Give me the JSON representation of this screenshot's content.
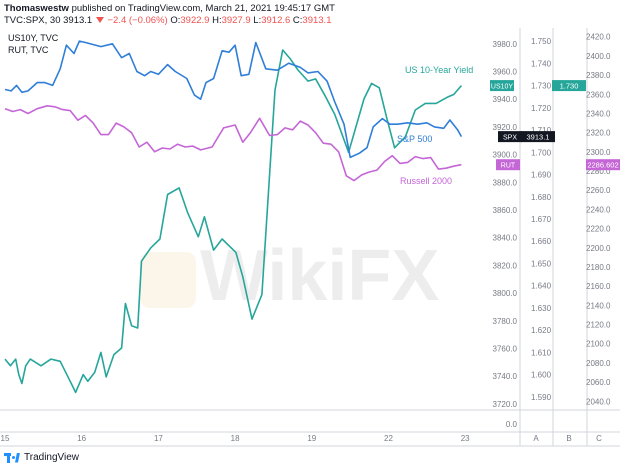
{
  "header": {
    "author": "Thomaswestw",
    "published_text": "published on TradingView.com, March 21, 2021 19:45:17 GMT",
    "symbol": "TVC:SPX, 30",
    "last": "3913.1",
    "change": "−2.4 (−0.06%)",
    "o_label": "O:",
    "o_value": "3922.9",
    "h_label": "H:",
    "h_value": "3927.9",
    "l_label": "L:",
    "l_value": "3912.6",
    "c_label": "C:",
    "c_value": "3913.1"
  },
  "overlay_legend": [
    "US10Y, TVC",
    "RUT, TVC"
  ],
  "footer": {
    "brand": "TradingView"
  },
  "watermark": "WikiFX",
  "colors": {
    "us10y": "#26a69a",
    "spx": "#2f7ed8",
    "rut": "#c466d6",
    "grid": "#f0f3fa",
    "axis_text": "#787b86"
  },
  "chart_data": {
    "type": "line",
    "x_ticks": [
      "15",
      "16",
      "17",
      "18",
      "19",
      "22",
      "23"
    ],
    "axis_spx": {
      "ticks": [
        3980.0,
        3960.0,
        3940.0,
        3920.0,
        3900.0,
        3880.0,
        3860.0,
        3840.0,
        3820.0,
        3800.0,
        3780.0,
        3760.0,
        3740.0,
        3720.0
      ],
      "range": [
        3717,
        3990
      ]
    },
    "axis_yield": {
      "ticks": [
        1.75,
        1.74,
        1.73,
        1.72,
        1.71,
        1.7,
        1.69,
        1.68,
        1.67,
        1.66,
        1.65,
        1.64,
        1.63,
        1.62,
        1.61,
        1.6,
        1.59
      ],
      "range": [
        1.585,
        1.755
      ]
    },
    "axis_rut": {
      "ticks": [
        2420.0,
        2400.0,
        2380.0,
        2360.0,
        2340.0,
        2320.0,
        2300.0,
        2280.0,
        2260.0,
        2240.0,
        2220.0,
        2200.0,
        2180.0,
        2160.0,
        2140.0,
        2120.0,
        2100.0,
        2080.0,
        2060.0,
        2040.0
      ],
      "range": [
        2033,
        2427
      ]
    },
    "bottom_pane": {
      "tick": "0.0"
    },
    "pane_letters": [
      "A",
      "B",
      "C"
    ],
    "series": [
      {
        "name": "US 10-Year Yield",
        "short": "US10Y",
        "axis": "yield",
        "last_label": "1.730",
        "color_key": "us10y",
        "points": [
          [
            0,
            1.607
          ],
          [
            0.07,
            1.604
          ],
          [
            0.14,
            1.607
          ],
          [
            0.18,
            1.6
          ],
          [
            0.22,
            1.596
          ],
          [
            0.27,
            1.604
          ],
          [
            0.33,
            1.607
          ],
          [
            0.47,
            1.604
          ],
          [
            0.6,
            1.607
          ],
          [
            0.72,
            1.606
          ],
          [
            0.85,
            1.597
          ],
          [
            0.92,
            1.592
          ],
          [
            1.02,
            1.6
          ],
          [
            1.08,
            1.597
          ],
          [
            1.17,
            1.601
          ],
          [
            1.25,
            1.61
          ],
          [
            1.32,
            1.599
          ],
          [
            1.42,
            1.609
          ],
          [
            1.52,
            1.612
          ],
          [
            1.57,
            1.632
          ],
          [
            1.65,
            1.622
          ],
          [
            1.73,
            1.621
          ],
          [
            1.78,
            1.651
          ],
          [
            1.9,
            1.657
          ],
          [
            2.02,
            1.661
          ],
          [
            2.12,
            1.681
          ],
          [
            2.27,
            1.684
          ],
          [
            2.38,
            1.673
          ],
          [
            2.52,
            1.662
          ],
          [
            2.6,
            1.671
          ],
          [
            2.72,
            1.656
          ],
          [
            2.83,
            1.661
          ],
          [
            3.01,
            1.655
          ],
          [
            3.1,
            1.644
          ],
          [
            3.22,
            1.625
          ],
          [
            3.35,
            1.636
          ],
          [
            3.52,
            1.728
          ],
          [
            3.62,
            1.746
          ],
          [
            3.72,
            1.742
          ],
          [
            3.82,
            1.737
          ],
          [
            3.95,
            1.732
          ],
          [
            4.05,
            1.733
          ],
          [
            4.18,
            1.725
          ],
          [
            4.3,
            1.717
          ],
          [
            4.48,
            1.7
          ],
          [
            4.58,
            1.712
          ],
          [
            4.68,
            1.724
          ],
          [
            4.78,
            1.731
          ],
          [
            4.88,
            1.729
          ],
          [
            4.98,
            1.715
          ],
          [
            5.08,
            1.702
          ],
          [
            5.22,
            1.707
          ],
          [
            5.35,
            1.719
          ],
          [
            5.48,
            1.722
          ],
          [
            5.62,
            1.722
          ],
          [
            5.78,
            1.725
          ],
          [
            5.85,
            1.726
          ],
          [
            5.95,
            1.73
          ]
        ]
      },
      {
        "name": "S&P 500",
        "short": "SPX",
        "axis": "spx",
        "last_label": "3913.1",
        "color_key": "spx",
        "points": [
          [
            0,
            3947
          ],
          [
            0.08,
            3946
          ],
          [
            0.15,
            3950
          ],
          [
            0.22,
            3945
          ],
          [
            0.3,
            3946
          ],
          [
            0.42,
            3952
          ],
          [
            0.52,
            3952
          ],
          [
            0.62,
            3950
          ],
          [
            0.72,
            3962
          ],
          [
            0.8,
            3979
          ],
          [
            0.9,
            3973
          ],
          [
            0.97,
            3982
          ],
          [
            1.05,
            3981
          ],
          [
            1.25,
            3978
          ],
          [
            1.4,
            3980
          ],
          [
            1.52,
            3970
          ],
          [
            1.62,
            3973
          ],
          [
            1.72,
            3960
          ],
          [
            1.82,
            3957
          ],
          [
            1.9,
            3960
          ],
          [
            2.0,
            3958
          ],
          [
            2.12,
            3965
          ],
          [
            2.22,
            3960
          ],
          [
            2.37,
            3955
          ],
          [
            2.47,
            3943
          ],
          [
            2.55,
            3940
          ],
          [
            2.62,
            3952
          ],
          [
            2.72,
            3955
          ],
          [
            2.83,
            3975
          ],
          [
            2.92,
            3974
          ],
          [
            3.0,
            3979
          ],
          [
            3.08,
            3957
          ],
          [
            3.18,
            3958
          ],
          [
            3.27,
            3981
          ],
          [
            3.4,
            3962
          ],
          [
            3.55,
            3961
          ],
          [
            3.7,
            3966
          ],
          [
            3.85,
            3963
          ],
          [
            3.95,
            3959
          ],
          [
            4.08,
            3960
          ],
          [
            4.2,
            3953
          ],
          [
            4.3,
            3938
          ],
          [
            4.42,
            3922
          ],
          [
            4.5,
            3898
          ],
          [
            4.62,
            3901
          ],
          [
            4.72,
            3905
          ],
          [
            4.8,
            3920
          ],
          [
            4.92,
            3926
          ],
          [
            5.02,
            3922
          ],
          [
            5.12,
            3922
          ],
          [
            5.25,
            3923
          ],
          [
            5.38,
            3922
          ],
          [
            5.5,
            3923
          ],
          [
            5.6,
            3920
          ],
          [
            5.72,
            3919
          ],
          [
            5.8,
            3925
          ],
          [
            5.9,
            3918
          ],
          [
            5.95,
            3913
          ]
        ]
      },
      {
        "name": "Russell 2000",
        "short": "RUT",
        "axis": "rut",
        "last_label": "2286.602",
        "color_key": "rut",
        "points": [
          [
            0,
            2345
          ],
          [
            0.1,
            2342
          ],
          [
            0.2,
            2344
          ],
          [
            0.3,
            2340
          ],
          [
            0.42,
            2345
          ],
          [
            0.55,
            2348
          ],
          [
            0.65,
            2347
          ],
          [
            0.75,
            2344
          ],
          [
            0.85,
            2343
          ],
          [
            0.95,
            2333
          ],
          [
            1.05,
            2338
          ],
          [
            1.15,
            2330
          ],
          [
            1.25,
            2318
          ],
          [
            1.35,
            2318
          ],
          [
            1.45,
            2330
          ],
          [
            1.55,
            2326
          ],
          [
            1.65,
            2320
          ],
          [
            1.75,
            2305
          ],
          [
            1.85,
            2310
          ],
          [
            1.95,
            2300
          ],
          [
            2.05,
            2304
          ],
          [
            2.15,
            2303
          ],
          [
            2.25,
            2308
          ],
          [
            2.35,
            2305
          ],
          [
            2.45,
            2306
          ],
          [
            2.55,
            2302
          ],
          [
            2.7,
            2305
          ],
          [
            2.85,
            2325
          ],
          [
            3.0,
            2328
          ],
          [
            3.1,
            2310
          ],
          [
            3.2,
            2320
          ],
          [
            3.32,
            2335
          ],
          [
            3.45,
            2317
          ],
          [
            3.55,
            2318
          ],
          [
            3.65,
            2325
          ],
          [
            3.75,
            2323
          ],
          [
            3.85,
            2332
          ],
          [
            3.95,
            2328
          ],
          [
            4.05,
            2320
          ],
          [
            4.15,
            2309
          ],
          [
            4.25,
            2308
          ],
          [
            4.35,
            2300
          ],
          [
            4.45,
            2275
          ],
          [
            4.55,
            2270
          ],
          [
            4.65,
            2276
          ],
          [
            4.75,
            2279
          ],
          [
            4.85,
            2281
          ],
          [
            4.95,
            2290
          ],
          [
            5.05,
            2296
          ],
          [
            5.15,
            2288
          ],
          [
            5.25,
            2289
          ],
          [
            5.35,
            2295
          ],
          [
            5.45,
            2293
          ],
          [
            5.55,
            2294
          ],
          [
            5.65,
            2282
          ],
          [
            5.75,
            2283
          ],
          [
            5.85,
            2285
          ],
          [
            5.95,
            2286.6
          ]
        ]
      }
    ]
  }
}
